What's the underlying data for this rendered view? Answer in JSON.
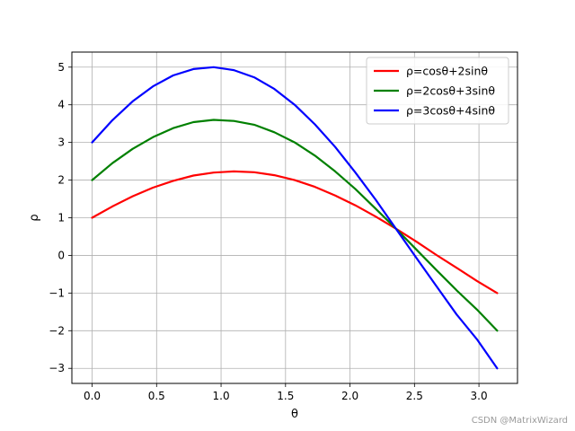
{
  "chart_data": {
    "type": "line",
    "xlabel": "θ",
    "ylabel": "ρ",
    "xlim": [
      -0.157,
      3.299
    ],
    "ylim": [
      -3.4,
      5.4
    ],
    "x_ticks": [
      0.0,
      0.5,
      1.0,
      1.5,
      2.0,
      2.5,
      3.0
    ],
    "x_tick_labels": [
      "0.0",
      "0.5",
      "1.0",
      "1.5",
      "2.0",
      "2.5",
      "3.0"
    ],
    "y_ticks": [
      -3,
      -2,
      -1,
      0,
      1,
      2,
      3,
      4,
      5
    ],
    "y_tick_labels": [
      "−3",
      "−2",
      "−1",
      "0",
      "1",
      "2",
      "3",
      "4",
      "5"
    ],
    "grid": true,
    "legend_position": "top-right",
    "x": [
      0.0,
      0.1571,
      0.3142,
      0.4712,
      0.6283,
      0.7854,
      0.9425,
      1.0996,
      1.2566,
      1.4137,
      1.5708,
      1.7279,
      1.885,
      2.042,
      2.1991,
      2.3562,
      2.5133,
      2.6704,
      2.8274,
      2.9845,
      3.1416
    ],
    "series": [
      {
        "name": "ρ=cosθ+2sinθ",
        "color": "#ff0000",
        "values": [
          1.0,
          1.3,
          1.57,
          1.8,
          1.98,
          2.12,
          2.2,
          2.23,
          2.21,
          2.13,
          2.0,
          1.82,
          1.59,
          1.33,
          1.03,
          0.71,
          0.37,
          0.01,
          -0.33,
          -0.68,
          -1.0
        ]
      },
      {
        "name": "ρ=2cosθ+3sinθ",
        "color": "#008000",
        "values": [
          2.0,
          2.45,
          2.83,
          3.14,
          3.38,
          3.54,
          3.6,
          3.57,
          3.47,
          3.27,
          3.0,
          2.65,
          2.23,
          1.76,
          1.24,
          0.71,
          0.16,
          -0.39,
          -0.93,
          -1.44,
          -2.0
        ]
      },
      {
        "name": "ρ=3cosθ+4sinθ",
        "color": "#0000ff",
        "values": [
          3.0,
          3.59,
          4.09,
          4.49,
          4.78,
          4.95,
          5.0,
          4.92,
          4.73,
          4.42,
          4.0,
          3.48,
          2.88,
          2.2,
          1.48,
          0.71,
          -0.06,
          -0.82,
          -1.57,
          -2.23,
          -3.0
        ]
      }
    ]
  },
  "watermark": "CSDN @MatrixWizard"
}
